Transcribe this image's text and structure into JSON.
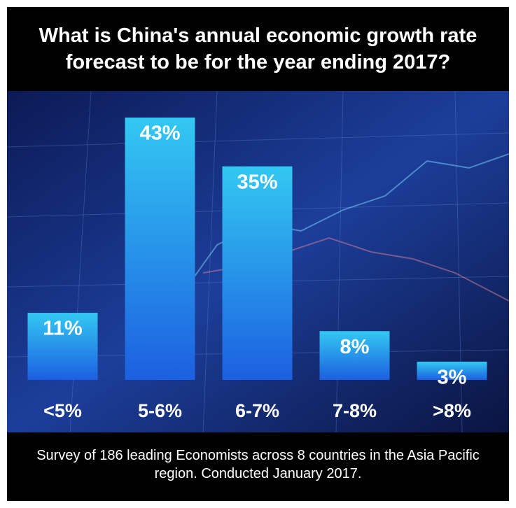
{
  "chart_data": {
    "type": "bar",
    "title": "What is China's annual economic growth rate forecast to be for the year ending 2017?",
    "caption": "Survey of 186 leading Economists across 8 countries in the Asia Pacific region. Conducted January 2017.",
    "categories": [
      "<5%",
      "5-6%",
      "6-7%",
      "7-8%",
      ">8%"
    ],
    "values": [
      11,
      43,
      35,
      8,
      3
    ],
    "value_labels": [
      "11%",
      "43%",
      "35%",
      "8%",
      "3%"
    ],
    "color": [
      "#33c8f2",
      "#1c5fe0"
    ]
  }
}
